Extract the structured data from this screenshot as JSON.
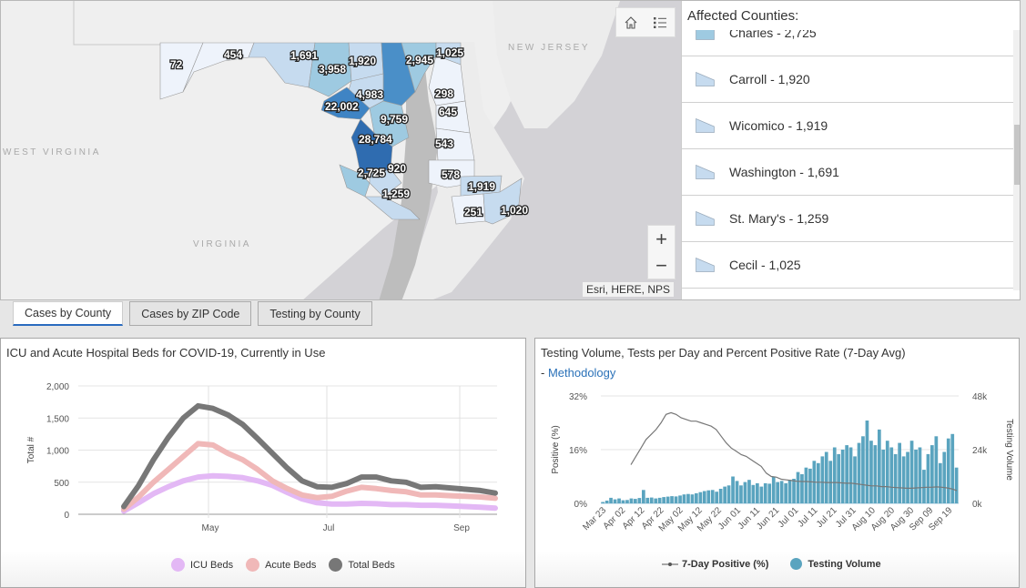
{
  "map": {
    "state_labels": [
      "WEST VIRGINIA",
      "VIRGINIA",
      "NEW JERSEY"
    ],
    "county_labels": [
      "72",
      "454",
      "1,691",
      "3,958",
      "1,920",
      "2,945",
      "1,025",
      "4,983",
      "22,002",
      "9,759",
      "298",
      "645",
      "543",
      "28,784",
      "2,725",
      "920",
      "578",
      "1,919",
      "1,259",
      "251",
      "1,020"
    ],
    "home_icon": "home-icon",
    "legend_icon": "list-icon",
    "zoom_in_label": "+",
    "zoom_out_label": "−",
    "attribution": "Esri, HERE, NPS"
  },
  "list": {
    "title": "Affected Counties:",
    "items": [
      {
        "label": "Charles - 2,725",
        "color": "#9ecae1"
      },
      {
        "label": "Carroll - 1,920",
        "color": "#c6dbef"
      },
      {
        "label": "Wicomico - 1,919",
        "color": "#c6dbef"
      },
      {
        "label": "Washington - 1,691",
        "color": "#c6dbef"
      },
      {
        "label": "St. Mary's - 1,259",
        "color": "#c6dbef"
      },
      {
        "label": "Cecil - 1,025",
        "color": "#c6dbef"
      }
    ]
  },
  "tabs": [
    {
      "label": "Cases by County",
      "active": true
    },
    {
      "label": "Cases by ZIP Code",
      "active": false
    },
    {
      "label": "Testing by County",
      "active": false
    }
  ],
  "chart_data": [
    {
      "type": "line",
      "title": "ICU and Acute Hospital Beds for COVID-19, Currently in Use",
      "xlabel": "",
      "ylabel": "Total #",
      "ylim": [
        0,
        2000
      ],
      "yticks": [
        "0",
        "500",
        "1,000",
        "1,500",
        "2,000"
      ],
      "xticks": [
        "May",
        "Jul",
        "Sep"
      ],
      "grid": true,
      "legend_position": "bottom",
      "x_weeks": [
        0,
        1,
        2,
        3,
        4,
        5,
        6,
        7,
        8,
        9,
        10,
        11,
        12,
        13,
        14,
        15,
        16,
        17,
        18,
        19,
        20,
        21,
        22,
        23,
        24,
        25
      ],
      "series": [
        {
          "name": "ICU Beds",
          "color": "#e3b8f5",
          "values": [
            50,
            180,
            320,
            430,
            520,
            580,
            600,
            590,
            570,
            520,
            450,
            340,
            240,
            180,
            160,
            160,
            170,
            165,
            150,
            150,
            140,
            140,
            130,
            120,
            110,
            95
          ]
        },
        {
          "name": "Acute Beds",
          "color": "#f0b8b8",
          "values": [
            80,
            270,
            500,
            700,
            900,
            1100,
            1080,
            950,
            850,
            700,
            520,
            400,
            300,
            260,
            280,
            360,
            420,
            400,
            370,
            350,
            300,
            300,
            290,
            280,
            270,
            250
          ]
        },
        {
          "name": "Total Beds",
          "color": "#777777",
          "values": [
            120,
            450,
            850,
            1200,
            1500,
            1690,
            1650,
            1550,
            1400,
            1180,
            950,
            720,
            520,
            430,
            420,
            480,
            580,
            580,
            520,
            500,
            420,
            430,
            410,
            390,
            370,
            330
          ]
        }
      ]
    },
    {
      "type": "bar",
      "title": "Testing Volume, Tests per Day and Percent Positive Rate (7-Day Avg)",
      "link_prefix": "- ",
      "link_label": "Methodology",
      "ylabel_left": "Positive (%)",
      "ylabel_right": "Testing Volume",
      "yticks_left": [
        "0%",
        "16%",
        "32%"
      ],
      "yticks_right": [
        "0k",
        "24k",
        "48k"
      ],
      "ylim_left": [
        0,
        32
      ],
      "ylim_right": [
        0,
        48000
      ],
      "xticks": [
        "Mar 23",
        "Apr 02",
        "Apr 12",
        "Apr 22",
        "May 02",
        "May 12",
        "May 22",
        "Jun 01",
        "Jun 11",
        "Jun 21",
        "Jul 01",
        "Jul 11",
        "Jul 21",
        "Jul 31",
        "Aug 10",
        "Aug 20",
        "Aug 30",
        "Sep 09",
        "Sep 19"
      ],
      "grid": true,
      "legend_position": "bottom",
      "series": [
        {
          "name": "7-Day Positive (%)",
          "type": "line",
          "color": "#777777",
          "values": [
            null,
            null,
            null,
            null,
            null,
            null,
            11.5,
            14,
            16.5,
            19,
            20.5,
            22,
            24,
            26.5,
            27,
            26.5,
            25.5,
            25,
            24.5,
            24.5,
            24,
            23.5,
            23,
            22,
            20,
            18,
            16.5,
            15.5,
            14.5,
            14,
            13,
            12,
            11,
            9,
            8,
            7.8,
            7.2,
            7,
            6.8,
            6.6,
            6.5,
            6.5,
            6.4,
            6.3,
            6.3,
            6.2,
            6.2,
            6.2,
            6.1,
            6,
            6,
            5.8,
            5.6,
            5.4,
            5.2,
            5.2,
            5.0,
            5.0,
            4.8,
            4.7,
            4.6,
            4.5,
            4.5,
            4.6,
            4.7,
            4.8,
            4.8,
            4.9,
            4.8,
            4.6,
            4.3,
            3.8
          ]
        },
        {
          "name": "Testing Volume",
          "type": "bar",
          "color": "#5aa4bf",
          "values": [
            600,
            1200,
            2500,
            1800,
            2200,
            1400,
            1500,
            2200,
            2000,
            2400,
            6000,
            2500,
            2600,
            2200,
            2500,
            2800,
            3000,
            3200,
            3100,
            3500,
            4000,
            4200,
            4000,
            4500,
            5000,
            5500,
            5800,
            6000,
            5200,
            6500,
            7500,
            8000,
            12000,
            10000,
            8000,
            9500,
            10500,
            8200,
            9000,
            7500,
            9000,
            8800,
            12000,
            9500,
            10000,
            9000,
            10500,
            11000,
            14000,
            13000,
            16000,
            15500,
            19000,
            18000,
            21000,
            23000,
            19000,
            25000,
            22000,
            24000,
            26000,
            25000,
            21000,
            27000,
            30000,
            37000,
            28000,
            26000,
            33000,
            24000,
            28000,
            25000,
            22000,
            27000,
            21000,
            23000,
            28000,
            24000,
            25000,
            15000,
            22000,
            26000,
            30000,
            18000,
            23000,
            29000,
            31000,
            16000
          ]
        }
      ]
    }
  ]
}
